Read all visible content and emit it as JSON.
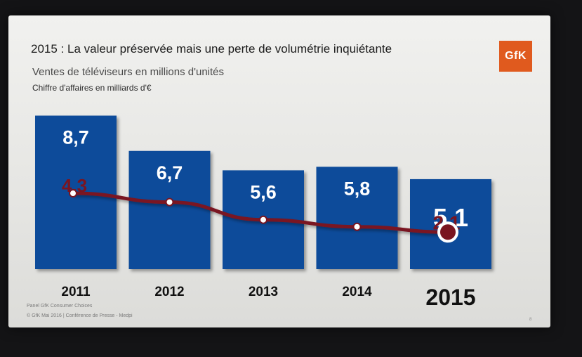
{
  "slide": {
    "title": "2015 : La valeur préservée mais une perte de volumétrie inquiétante",
    "subtitle": "Ventes de téléviseurs en millions d'unités",
    "subtitle2": "Chiffre d'affaires en milliards d'€",
    "logo_text": "GfK",
    "footer_source": "Panel GfK Consumer Choices",
    "footer_copyright": "© GfK Mai 2016 | Conférence de Presse - Medpi",
    "page_number": "8"
  },
  "colors": {
    "bar": "#0f4c9a",
    "line": "#7a1520",
    "bar_label": "#ffffff",
    "line_label": "#7a1520",
    "logo": "#e05a1e"
  },
  "chart_data": {
    "type": "bar",
    "categories": [
      "2011",
      "2012",
      "2013",
      "2014",
      "2015"
    ],
    "series": [
      {
        "type": "bar",
        "values": [
          8.7,
          6.7,
          5.6,
          5.8,
          5.1
        ],
        "labels": [
          "8,7",
          "6,7",
          "5,6",
          "5,8",
          "5,1"
        ]
      },
      {
        "type": "line",
        "values": [
          4.3,
          3.8,
          2.8,
          2.4,
          2.1
        ],
        "labels": [
          "4,3",
          "",
          "",
          "",
          "2,1"
        ]
      }
    ],
    "highlight_category": "2015",
    "ylim": [
      0,
      9
    ],
    "grid": false,
    "legend": "none"
  }
}
